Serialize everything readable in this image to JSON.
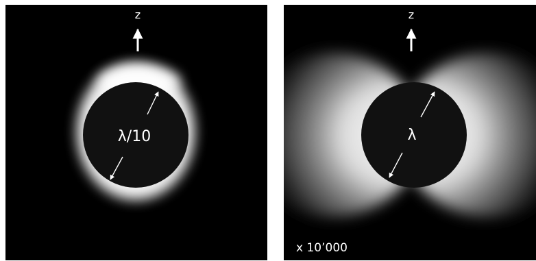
{
  "left_panel": {
    "axis_label": "z",
    "diameter_label": "λ/10"
  },
  "right_panel": {
    "axis_label": "z",
    "diameter_label": "λ",
    "scale_factor": "x 10’000"
  },
  "colors": {
    "background": "#000000",
    "sphere": "#111111",
    "field_glow": "#ffffff",
    "annotation": "#ffffff"
  }
}
